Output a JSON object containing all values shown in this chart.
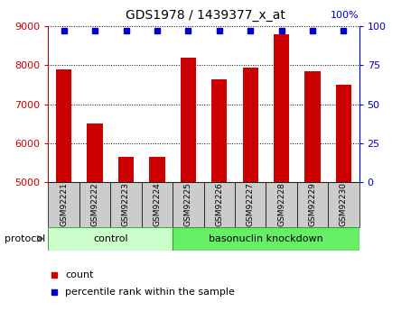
{
  "title": "GDS1978 / 1439377_x_at",
  "samples": [
    "GSM92221",
    "GSM92222",
    "GSM92223",
    "GSM92224",
    "GSM92225",
    "GSM92226",
    "GSM92227",
    "GSM92228",
    "GSM92229",
    "GSM92230"
  ],
  "counts": [
    7900,
    6500,
    5650,
    5650,
    8200,
    7650,
    7950,
    8800,
    7850,
    7500
  ],
  "percentiles": [
    100,
    100,
    100,
    100,
    100,
    100,
    100,
    100,
    100,
    100
  ],
  "ylim_left": [
    5000,
    9000
  ],
  "ylim_right": [
    0,
    100
  ],
  "yticks_left": [
    5000,
    6000,
    7000,
    8000,
    9000
  ],
  "yticks_right": [
    0,
    25,
    50,
    75,
    100
  ],
  "bar_color": "#cc0000",
  "dot_color": "#0000cc",
  "bar_width": 0.5,
  "left_tick_color": "#cc0000",
  "right_tick_color": "#0000cc",
  "legend_count_color": "#cc0000",
  "legend_pct_color": "#0000cc",
  "ctrl_color": "#ccffcc",
  "baso_color": "#66ee66",
  "gray_label_color": "#cccccc",
  "ctrl_border": "#44aa44",
  "baso_border": "#22aa22"
}
